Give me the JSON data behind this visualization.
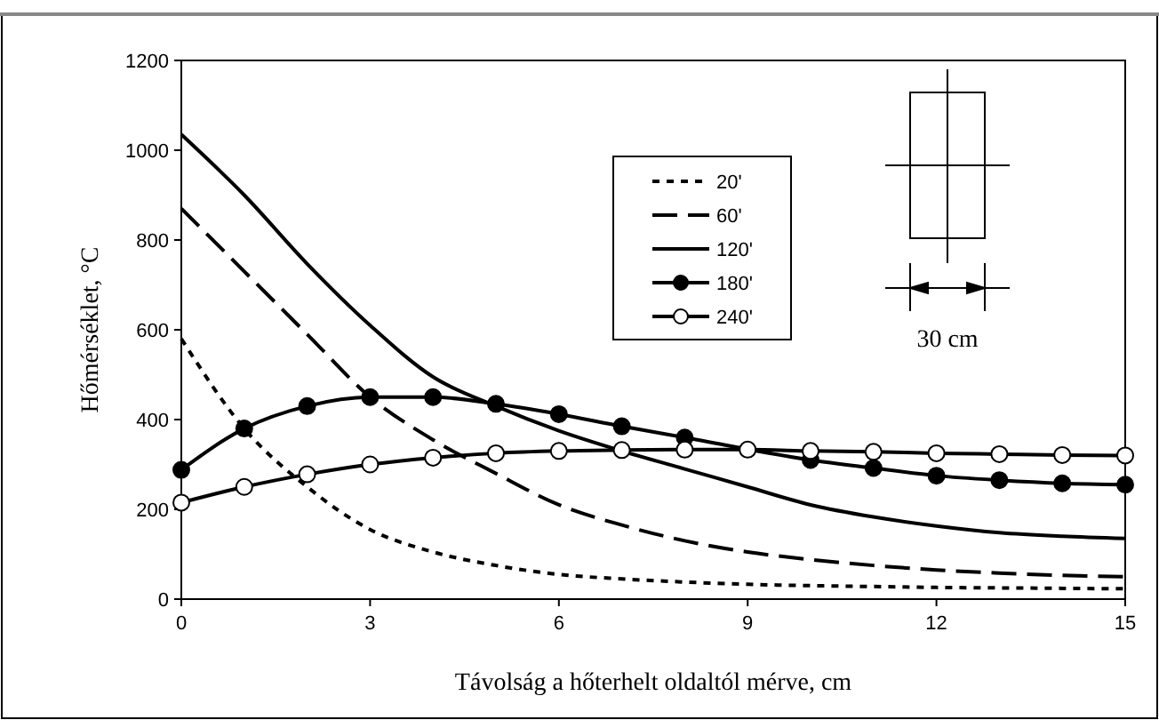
{
  "chart_data": {
    "type": "line",
    "xlabel": "Távolság a hőterhelt oldaltól mérve, cm",
    "ylabel": "Hőmérséklet, °C",
    "x": [
      0,
      1,
      2,
      3,
      4,
      5,
      6,
      7,
      8,
      9,
      10,
      11,
      12,
      13,
      14,
      15
    ],
    "xlim": [
      0,
      15
    ],
    "xticks": [
      0,
      3,
      6,
      9,
      12,
      15
    ],
    "ylim": [
      0,
      1200
    ],
    "yticks": [
      0,
      200,
      400,
      600,
      800,
      1000,
      1200
    ],
    "grid": false,
    "legend": "top",
    "annotations": [
      "30 cm"
    ],
    "series": [
      {
        "name": "20'",
        "color": "#000000",
        "line_style": "dotted",
        "marker": "none",
        "values": [
          580,
          380,
          250,
          155,
          105,
          75,
          55,
          45,
          38,
          33,
          30,
          28,
          26,
          25,
          24,
          23
        ]
      },
      {
        "name": "60'",
        "color": "#000000",
        "line_style": "dashed",
        "marker": "none",
        "values": [
          870,
          730,
          590,
          450,
          355,
          280,
          210,
          165,
          130,
          105,
          88,
          75,
          65,
          58,
          53,
          50
        ]
      },
      {
        "name": "120'",
        "color": "#000000",
        "line_style": "solid",
        "marker": "none",
        "values": [
          1035,
          900,
          747,
          610,
          495,
          430,
          375,
          330,
          290,
          250,
          210,
          183,
          163,
          148,
          140,
          135
        ]
      },
      {
        "name": "180'",
        "color": "#000000",
        "line_style": "solid",
        "marker": "circle",
        "values": [
          288,
          380,
          430,
          450,
          450,
          435,
          412,
          385,
          360,
          null,
          310,
          292,
          275,
          265,
          258,
          255
        ]
      },
      {
        "name": "240'",
        "color": "#ffffff",
        "line_style": "solid",
        "marker": "circle",
        "values": [
          215,
          250,
          278,
          300,
          315,
          325,
          330,
          332,
          333,
          333,
          330,
          328,
          325,
          323,
          321,
          320
        ]
      }
    ]
  }
}
